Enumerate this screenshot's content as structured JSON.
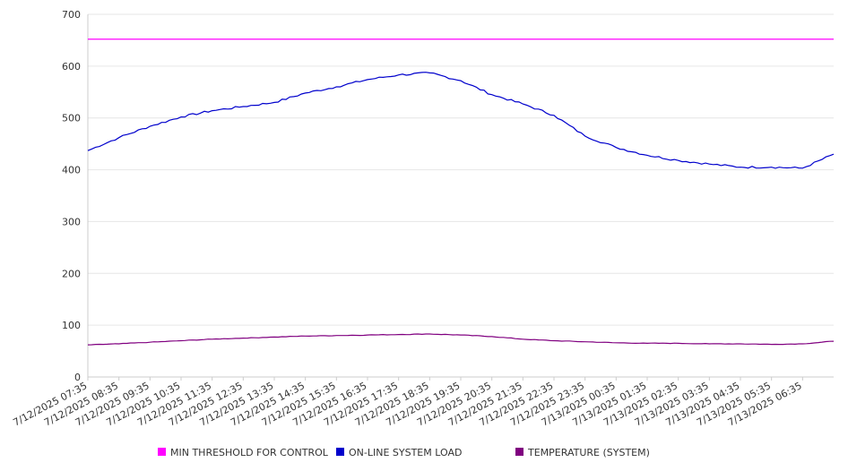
{
  "chart_data": {
    "type": "line",
    "title": "",
    "xlabel": "",
    "ylabel": "",
    "ylim": [
      0,
      700
    ],
    "yticks": [
      0,
      100,
      200,
      300,
      400,
      500,
      600,
      700
    ],
    "grid": true,
    "legend_position": "bottom",
    "x_labels": [
      "7/12/2025 07:35",
      "7/12/2025 08:35",
      "7/12/2025 09:35",
      "7/12/2025 10:35",
      "7/12/2025 11:35",
      "7/12/2025 12:35",
      "7/12/2025 13:35",
      "7/12/2025 14:35",
      "7/12/2025 15:35",
      "7/12/2025 16:35",
      "7/12/2025 17:35",
      "7/12/2025 18:35",
      "7/12/2025 19:35",
      "7/12/2025 20:35",
      "7/12/2025 21:35",
      "7/12/2025 22:35",
      "7/12/2025 23:35",
      "7/13/2025 00:35",
      "7/13/2025 01:35",
      "7/13/2025 02:35",
      "7/13/2025 03:35",
      "7/13/2025 04:35",
      "7/13/2025 05:35",
      "7/13/2025 06:35"
    ],
    "x_end": "7/13/2025 07:35",
    "series": [
      {
        "name": "MIN THRESHOLD FOR CONTROL",
        "color": "#ff00ff",
        "points": [
          [
            "7/12/2025 07:35",
            652
          ],
          [
            "7/13/2025 07:35",
            652
          ]
        ]
      },
      {
        "name": "ON-LINE SYSTEM LOAD",
        "color": "#0000cc",
        "points": [
          [
            "7/12/2025 07:35",
            437
          ],
          [
            "7/12/2025 08:35",
            462
          ],
          [
            "7/12/2025 09:35",
            484
          ],
          [
            "7/12/2025 10:35",
            502
          ],
          [
            "7/12/2025 11:35",
            514
          ],
          [
            "7/12/2025 12:35",
            522
          ],
          [
            "7/12/2025 13:35",
            530
          ],
          [
            "7/12/2025 14:35",
            548
          ],
          [
            "7/12/2025 15:35",
            560
          ],
          [
            "7/12/2025 16:35",
            574
          ],
          [
            "7/12/2025 17:35",
            583
          ],
          [
            "7/12/2025 18:35",
            587
          ],
          [
            "7/12/2025 19:35",
            572
          ],
          [
            "7/12/2025 20:35",
            545
          ],
          [
            "7/12/2025 21:35",
            527
          ],
          [
            "7/12/2025 22:35",
            505
          ],
          [
            "7/12/2025 23:35",
            465
          ],
          [
            "7/13/2025 00:35",
            443
          ],
          [
            "7/13/2025 01:35",
            428
          ],
          [
            "7/13/2025 02:35",
            418
          ],
          [
            "7/13/2025 03:35",
            411
          ],
          [
            "7/13/2025 04:35",
            405
          ],
          [
            "7/13/2025 05:35",
            405
          ],
          [
            "7/13/2025 06:35",
            403
          ],
          [
            "7/13/2025 07:35",
            430
          ]
        ]
      },
      {
        "name": "TEMPERATURE (SYSTEM)",
        "color": "#800080",
        "points": [
          [
            "7/12/2025 07:35",
            62
          ],
          [
            "7/12/2025 08:35",
            64
          ],
          [
            "7/12/2025 09:35",
            67
          ],
          [
            "7/12/2025 10:35",
            70
          ],
          [
            "7/12/2025 11:35",
            73
          ],
          [
            "7/12/2025 12:35",
            75
          ],
          [
            "7/12/2025 13:35",
            77
          ],
          [
            "7/12/2025 14:35",
            79
          ],
          [
            "7/12/2025 15:35",
            80
          ],
          [
            "7/12/2025 16:35",
            81
          ],
          [
            "7/12/2025 17:35",
            82
          ],
          [
            "7/12/2025 18:35",
            83
          ],
          [
            "7/12/2025 19:35",
            81
          ],
          [
            "7/12/2025 20:35",
            78
          ],
          [
            "7/12/2025 21:35",
            73
          ],
          [
            "7/12/2025 22:35",
            70
          ],
          [
            "7/12/2025 23:35",
            68
          ],
          [
            "7/13/2025 00:35",
            66
          ],
          [
            "7/13/2025 01:35",
            65
          ],
          [
            "7/13/2025 02:35",
            65
          ],
          [
            "7/13/2025 03:35",
            64
          ],
          [
            "7/13/2025 04:35",
            64
          ],
          [
            "7/13/2025 05:35",
            63
          ],
          [
            "7/13/2025 06:35",
            64
          ],
          [
            "7/13/2025 07:35",
            69
          ]
        ]
      }
    ]
  }
}
